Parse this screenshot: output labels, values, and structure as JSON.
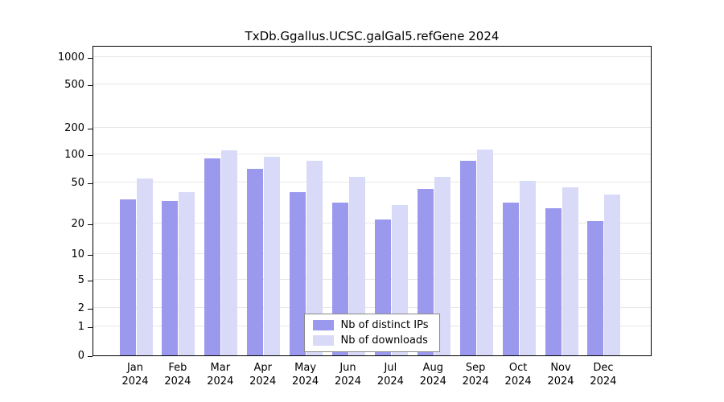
{
  "chart_data": {
    "type": "bar",
    "title": "TxDb.Ggallus.UCSC.galGal5.refGene 2024",
    "xlabel": "",
    "ylabel": "",
    "scale": "pseudo-log",
    "grid": "horizontal",
    "legend_position": "bottom-center-inside",
    "ylim": [
      0,
      1000
    ],
    "yticks": [
      0,
      1,
      2,
      5,
      10,
      20,
      50,
      100,
      200,
      500,
      1000
    ],
    "categories": [
      {
        "month": "Jan",
        "year": "2024"
      },
      {
        "month": "Feb",
        "year": "2024"
      },
      {
        "month": "Mar",
        "year": "2024"
      },
      {
        "month": "Apr",
        "year": "2024"
      },
      {
        "month": "May",
        "year": "2024"
      },
      {
        "month": "Jun",
        "year": "2024"
      },
      {
        "month": "Jul",
        "year": "2024"
      },
      {
        "month": "Aug",
        "year": "2024"
      },
      {
        "month": "Sep",
        "year": "2024"
      },
      {
        "month": "Oct",
        "year": "2024"
      },
      {
        "month": "Nov",
        "year": "2024"
      },
      {
        "month": "Dec",
        "year": "2024"
      }
    ],
    "series": [
      {
        "name": "Nb of distinct IPs",
        "color": "#9a99ee",
        "values": [
          34,
          33,
          90,
          70,
          40,
          32,
          22,
          43,
          85,
          32,
          28,
          21
        ]
      },
      {
        "name": "Nb of downloads",
        "color": "#d9d9f8",
        "values": [
          55,
          40,
          110,
          95,
          85,
          57,
          30,
          58,
          113,
          52,
          45,
          38
        ]
      }
    ],
    "colors": {
      "axis": "#000000",
      "gridline": "#e7e7e7",
      "background": "#ffffff"
    }
  }
}
